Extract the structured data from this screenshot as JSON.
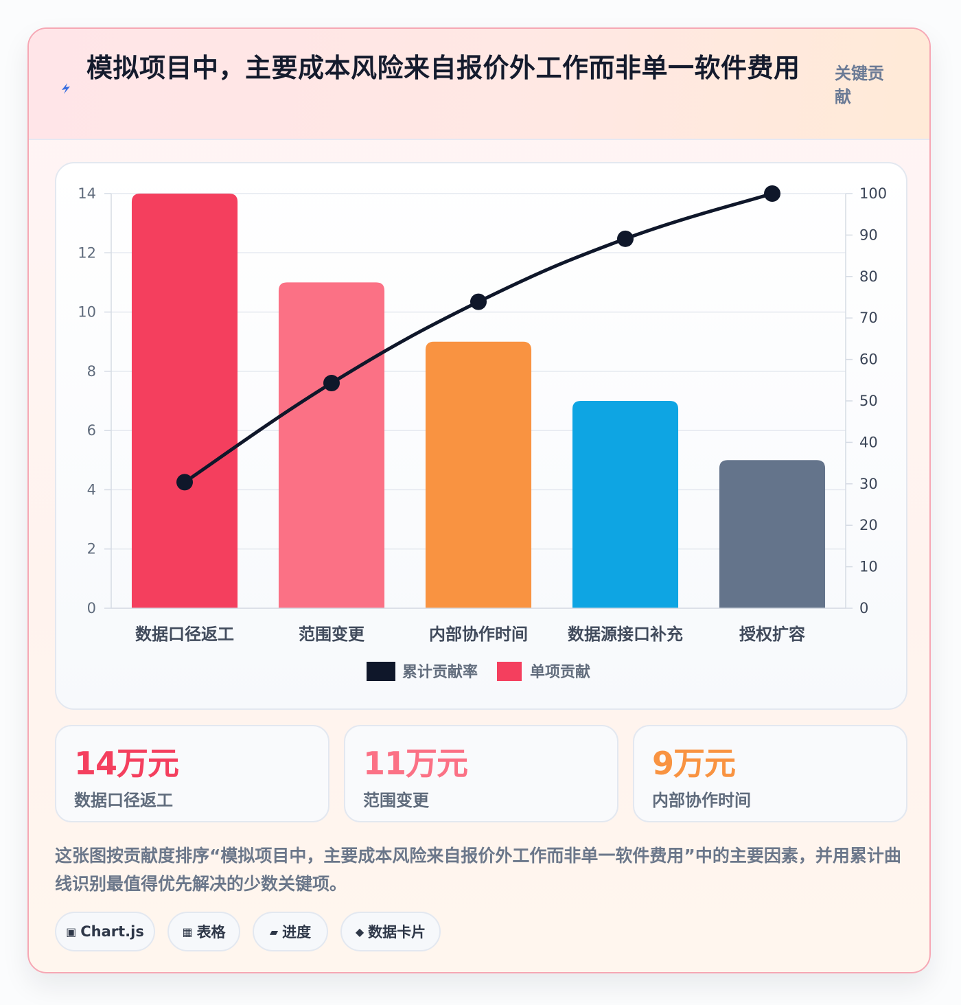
{
  "header": {
    "title": "模拟项目中，主要成本风险来自报价外工作而非单一软件费用",
    "tag": "关键贡献"
  },
  "chart_data": {
    "type": "bar",
    "categories": [
      "数据口径返工",
      "范围变更",
      "内部协作时间",
      "数据源接口补充",
      "授权扩容"
    ],
    "series": [
      {
        "name": "单项贡献",
        "type": "bar",
        "axis": "left",
        "values": [
          14,
          11,
          9,
          7,
          5
        ],
        "colors": [
          "#f43f5e",
          "#fb7185",
          "#f99341",
          "#0ea5e3",
          "#64748b"
        ]
      },
      {
        "name": "累计贡献率",
        "type": "line",
        "axis": "right",
        "values": [
          30.4,
          54.3,
          73.9,
          89.1,
          100
        ],
        "color": "#0f172a"
      }
    ],
    "left_axis": {
      "min": 0,
      "max": 14,
      "ticks": [
        0,
        2,
        4,
        6,
        8,
        10,
        12,
        14
      ]
    },
    "right_axis": {
      "min": 0,
      "max": 100,
      "ticks": [
        0,
        10,
        20,
        30,
        40,
        50,
        60,
        70,
        80,
        90,
        100
      ]
    },
    "legend": [
      {
        "label": "累计贡献率",
        "color": "#0f172a"
      },
      {
        "label": "单项贡献",
        "color": "#f43f5e"
      }
    ],
    "legend_position": "bottom",
    "grid": true
  },
  "stats": [
    {
      "value": "14万元",
      "label": "数据口径返工",
      "color": "#f43f5e"
    },
    {
      "value": "11万元",
      "label": "范围变更",
      "color": "#fb7185"
    },
    {
      "value": "9万元",
      "label": "内部协作时间",
      "color": "#f99341"
    }
  ],
  "description": "这张图按贡献度排序“模拟项目中，主要成本风险来自报价外工作而非单一软件费用”中的主要因素，并用累计曲线识别最值得优先解决的少数关键项。",
  "chips": [
    {
      "icon": "chart-icon",
      "label": "Chart.js"
    },
    {
      "icon": "table-icon",
      "label": "表格"
    },
    {
      "icon": "progress-icon",
      "label": "进度"
    },
    {
      "icon": "card-icon",
      "label": "数据卡片"
    }
  ]
}
